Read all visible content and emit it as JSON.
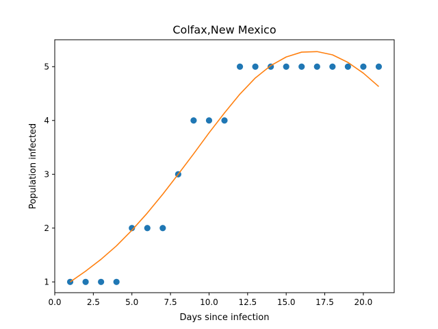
{
  "chart_data": {
    "type": "scatter",
    "title": "Colfax,New Mexico",
    "xlabel": "Days since infection",
    "ylabel": "Population infected",
    "xlim": [
      0,
      22.0
    ],
    "ylim": [
      0.8,
      5.5
    ],
    "xticks": [
      0.0,
      2.5,
      5.0,
      7.5,
      10.0,
      12.5,
      15.0,
      17.5,
      20.0
    ],
    "xtick_labels": [
      "0.0",
      "2.5",
      "5.0",
      "7.5",
      "10.0",
      "12.5",
      "15.0",
      "17.5",
      "20.0"
    ],
    "yticks": [
      1,
      2,
      3,
      4,
      5
    ],
    "ytick_labels": [
      "1",
      "2",
      "3",
      "4",
      "5"
    ],
    "grid": false,
    "colors": {
      "points": "#1f77b4",
      "fit": "#ff7f0e"
    },
    "series": [
      {
        "type": "scatter",
        "x": [
          1,
          2,
          3,
          4,
          5,
          6,
          7,
          8,
          9,
          10,
          11,
          12,
          13,
          14,
          15,
          16,
          17,
          18,
          19,
          20,
          21
        ],
        "y": [
          1,
          1,
          1,
          1,
          2,
          2,
          2,
          3,
          4,
          4,
          4,
          5,
          5,
          5,
          5,
          5,
          5,
          5,
          5,
          5,
          5
        ]
      },
      {
        "type": "line",
        "x": [
          1,
          2,
          3,
          4,
          5,
          6,
          7,
          8,
          9,
          10,
          11,
          12,
          13,
          14,
          15,
          16,
          17,
          18,
          19,
          20,
          21
        ],
        "y": [
          1.0,
          1.2,
          1.42,
          1.67,
          1.96,
          2.28,
          2.63,
          3.0,
          3.38,
          3.77,
          4.14,
          4.49,
          4.79,
          5.02,
          5.18,
          5.27,
          5.28,
          5.22,
          5.08,
          4.88,
          4.63
        ]
      }
    ]
  }
}
